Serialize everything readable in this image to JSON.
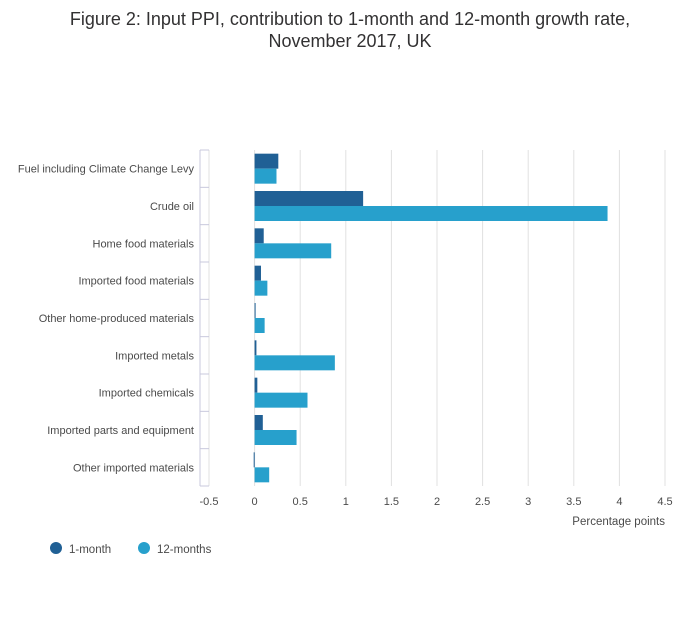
{
  "title": {
    "line1": "Figure 2: Input PPI, contribution to 1-month and 12-month growth rate,",
    "line2": "November 2017, UK"
  },
  "colors": {
    "series_1": "#206095",
    "series_2": "#27a0cc",
    "grid": "#e0e0e0",
    "axis": "#c8c8dc"
  },
  "chart_data": {
    "type": "bar",
    "orientation": "horizontal",
    "categories": [
      "Fuel including Climate Change Levy",
      "Crude oil",
      "Home food materials",
      "Imported food materials",
      "Other home-produced materials",
      "Imported metals",
      "Imported chemicals",
      "Imported parts and equipment",
      "Other imported materials"
    ],
    "series": [
      {
        "name": "1-month",
        "values": [
          0.26,
          1.19,
          0.1,
          0.07,
          0.01,
          0.02,
          0.03,
          0.09,
          -0.01
        ]
      },
      {
        "name": "12-months",
        "values": [
          0.24,
          3.87,
          0.84,
          0.14,
          0.11,
          0.88,
          0.58,
          0.46,
          0.16
        ]
      }
    ],
    "xlabel": "Percentage points",
    "xlim": [
      -0.5,
      4.5
    ],
    "xticks": [
      -0.5,
      0,
      0.5,
      1,
      1.5,
      2,
      2.5,
      3,
      3.5,
      4,
      4.5
    ],
    "xtick_labels": [
      "-0.5",
      "0",
      "0.5",
      "1",
      "1.5",
      "2",
      "2.5",
      "3",
      "3.5",
      "4",
      "4.5"
    ],
    "grid": true,
    "legend_position": "bottom-left"
  }
}
